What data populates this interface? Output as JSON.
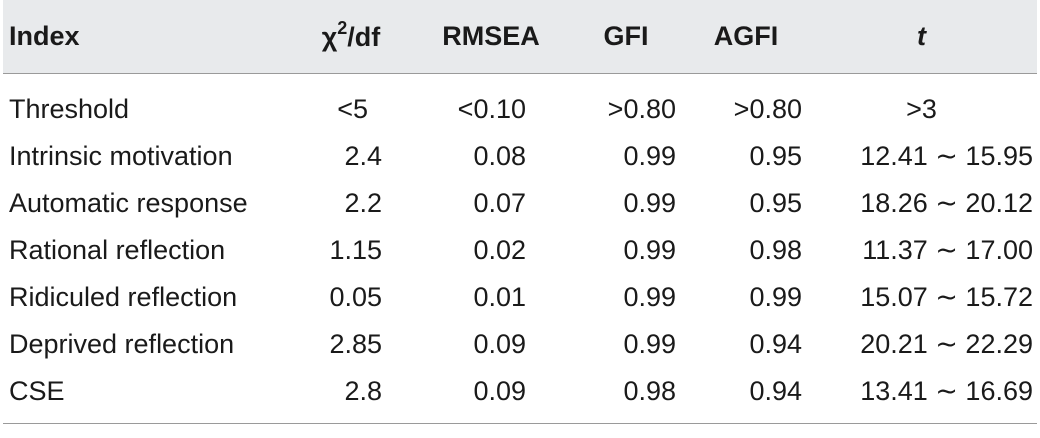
{
  "table": {
    "headers": {
      "index": "Index",
      "chi_base": "χ",
      "chi_sup": "2",
      "chi_tail": "/df",
      "rmsea": "RMSEA",
      "gfi": "GFI",
      "agfi": "AGFI",
      "t": "t"
    },
    "rows": [
      {
        "label": "Threshold",
        "chi": "<5",
        "rmsea": "<0.10",
        "gfi": ">0.80",
        "agfi": ">0.80",
        "t": ">3"
      },
      {
        "label": "Intrinsic motivation",
        "chi": "2.4",
        "rmsea": "0.08",
        "gfi": "0.99",
        "agfi": "0.95",
        "t": "12.41 ∼ 15.95"
      },
      {
        "label": "Automatic response",
        "chi": "2.2",
        "rmsea": "0.07",
        "gfi": "0.99",
        "agfi": "0.95",
        "t": "18.26 ∼ 20.12"
      },
      {
        "label": "Rational reflection",
        "chi": "1.15",
        "rmsea": "0.02",
        "gfi": "0.99",
        "agfi": "0.98",
        "t": "11.37 ∼ 17.00"
      },
      {
        "label": "Ridiculed reflection",
        "chi": "0.05",
        "rmsea": "0.01",
        "gfi": "0.99",
        "agfi": "0.99",
        "t": "15.07 ∼ 15.72"
      },
      {
        "label": "Deprived reflection",
        "chi": "2.85",
        "rmsea": "0.09",
        "gfi": "0.99",
        "agfi": "0.94",
        "t": "20.21 ∼ 22.29"
      },
      {
        "label": "CSE",
        "chi": "2.8",
        "rmsea": "0.09",
        "gfi": "0.98",
        "agfi": "0.94",
        "t": "13.41 ∼ 16.69"
      }
    ]
  }
}
